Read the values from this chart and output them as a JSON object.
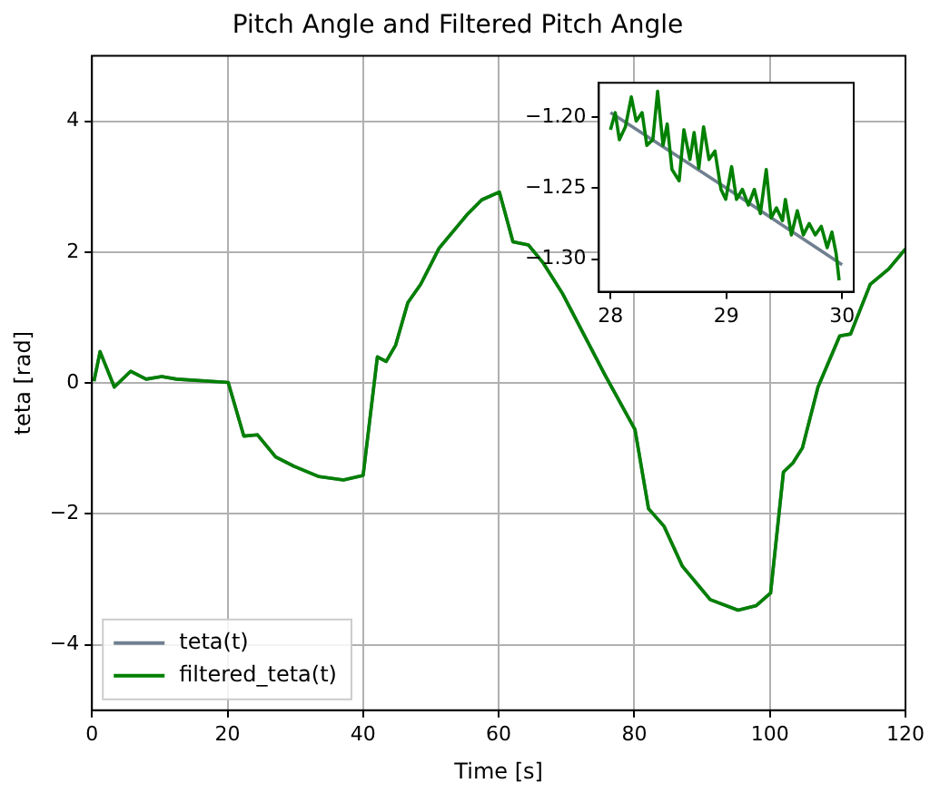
{
  "chart_data": [
    {
      "type": "line",
      "title": "Pitch Angle and Filtered Pitch Angle",
      "xlabel": "Time [s]",
      "ylabel": "teta [rad]",
      "xlim": [
        0,
        120
      ],
      "ylim": [
        -5,
        5
      ],
      "xticks": [
        0,
        20,
        40,
        60,
        80,
        100,
        120
      ],
      "yticks": [
        {
          "value": -4,
          "label": "−4"
        },
        {
          "value": -2,
          "label": "−2"
        },
        0,
        2,
        4
      ],
      "grid": true,
      "legend": "bottom left",
      "marker": "none",
      "line_style": "solid",
      "x": [
        0.3,
        1.2,
        3.3,
        5.7,
        8,
        10.3,
        12.5,
        20.1,
        22.4,
        24.4,
        27.1,
        29.8,
        33.5,
        37.1,
        40,
        42.1,
        43.4,
        44.8,
        46.6,
        48.5,
        51.2,
        55.3,
        57.5,
        60.1,
        62.1,
        64.4,
        66.6,
        69.4,
        75.7,
        80.1,
        82.1,
        84.4,
        87.1,
        91.2,
        95.3,
        98,
        100.1,
        102,
        103.4,
        104.8,
        107.1,
        110.3,
        111.9,
        114.8,
        117.5,
        120
      ],
      "series": [
        {
          "name": "teta(t)",
          "color": "#708090",
          "values": [
            0.03,
            0.48,
            -0.06,
            0.18,
            0.06,
            0.1,
            0.06,
            0.01,
            -0.81,
            -0.79,
            -1.13,
            -1.27,
            -1.43,
            -1.48,
            -1.41,
            0.4,
            0.33,
            0.58,
            1.23,
            1.51,
            2.06,
            2.57,
            2.8,
            2.92,
            2.16,
            2.11,
            1.83,
            1.37,
            0.12,
            -0.71,
            -1.92,
            -2.19,
            -2.8,
            -3.31,
            -3.47,
            -3.4,
            -3.21,
            -1.36,
            -1.22,
            -0.99,
            -0.06,
            0.72,
            0.75,
            1.51,
            1.74,
            2.05
          ]
        },
        {
          "name": "filtered_teta(t)",
          "color": "#008000",
          "values": [
            0.03,
            0.48,
            -0.06,
            0.18,
            0.06,
            0.1,
            0.06,
            0.01,
            -0.81,
            -0.79,
            -1.13,
            -1.27,
            -1.43,
            -1.48,
            -1.41,
            0.4,
            0.33,
            0.58,
            1.23,
            1.51,
            2.06,
            2.57,
            2.8,
            2.92,
            2.16,
            2.11,
            1.83,
            1.37,
            0.12,
            -0.71,
            -1.92,
            -2.19,
            -2.8,
            -3.31,
            -3.47,
            -3.4,
            -3.21,
            -1.36,
            -1.22,
            -0.99,
            -0.06,
            0.72,
            0.75,
            1.51,
            1.74,
            2.05
          ]
        }
      ]
    },
    {
      "type": "line",
      "xlim": [
        27.9,
        30.1
      ],
      "ylim": [
        -1.323,
        -1.176
      ],
      "xticks": [
        28,
        29,
        30
      ],
      "yticks": [
        {
          "value": -1.3,
          "label": "−1.30"
        },
        {
          "value": -1.25,
          "label": "−1.25"
        },
        {
          "value": -1.2,
          "label": "−1.20"
        }
      ],
      "marker": "none",
      "line_style": "solid",
      "series": [
        {
          "color": "#708090",
          "x": [
            28,
            29,
            30
          ],
          "values": [
            -1.197,
            -1.25,
            -1.304
          ]
        },
        {
          "color": "#008000",
          "x": [
            28,
            28.041,
            28.077,
            28.129,
            28.18,
            28.222,
            28.273,
            28.314,
            28.366,
            28.407,
            28.454,
            28.49,
            28.531,
            28.593,
            28.634,
            28.686,
            28.722,
            28.763,
            28.804,
            28.851,
            28.902,
            28.954,
            28.995,
            29.046,
            29.088,
            29.139,
            29.191,
            29.242,
            29.294,
            29.345,
            29.387,
            29.433,
            29.485,
            29.51,
            29.562,
            29.613,
            29.665,
            29.716,
            29.768,
            29.82,
            29.871,
            29.912,
            29.948,
            29.974
          ],
          "values": [
            -1.209,
            -1.197,
            -1.216,
            -1.207,
            -1.186,
            -1.203,
            -1.197,
            -1.22,
            -1.216,
            -1.182,
            -1.22,
            -1.205,
            -1.237,
            -1.245,
            -1.209,
            -1.23,
            -1.211,
            -1.236,
            -1.207,
            -1.23,
            -1.224,
            -1.251,
            -1.258,
            -1.235,
            -1.258,
            -1.251,
            -1.262,
            -1.251,
            -1.268,
            -1.237,
            -1.271,
            -1.264,
            -1.273,
            -1.258,
            -1.283,
            -1.266,
            -1.283,
            -1.275,
            -1.283,
            -1.277,
            -1.292,
            -1.281,
            -1.296,
            -1.315
          ]
        }
      ]
    }
  ]
}
